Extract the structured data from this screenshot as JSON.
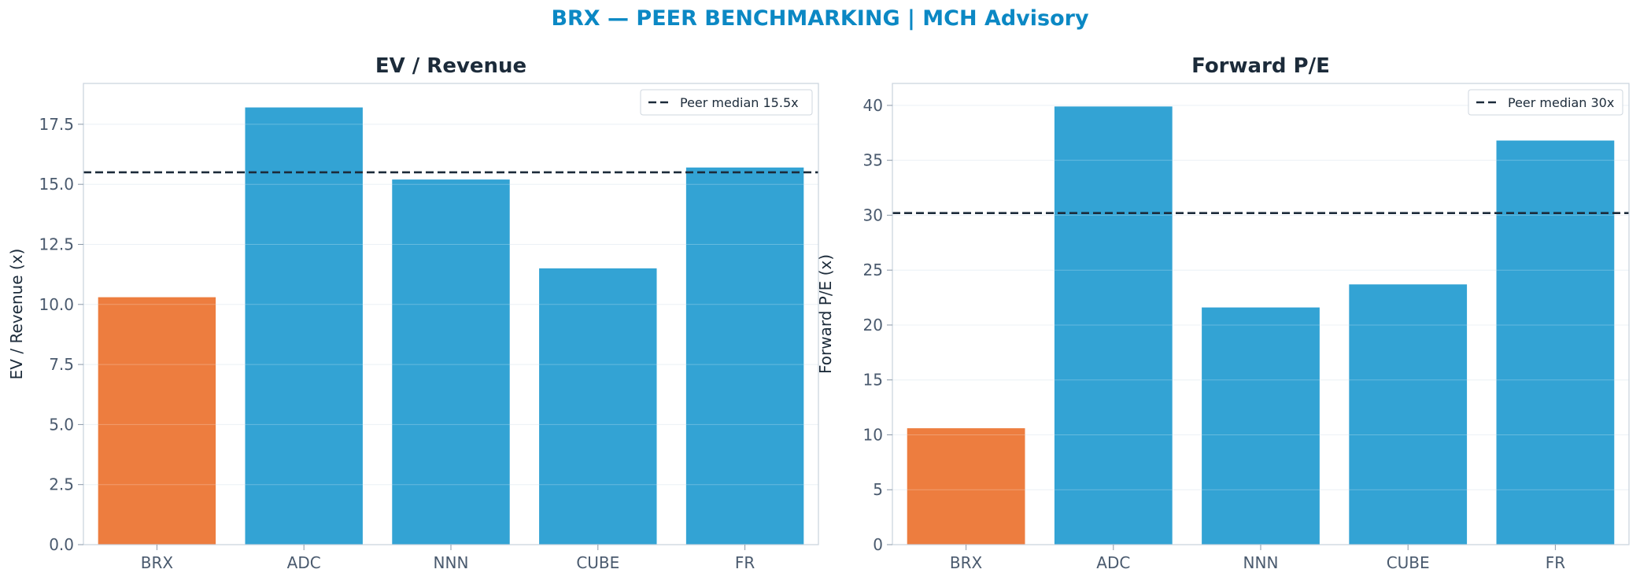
{
  "title": "BRX — PEER BENCHMARKING | MCH Advisory",
  "colors": {
    "highlight": "#ED7D3F",
    "peer": "#33A3D4",
    "median_line": "#1C2B3A",
    "title": "#0B88C4"
  },
  "chart_data": [
    {
      "type": "bar",
      "title": "EV / Revenue",
      "ylabel": "EV / Revenue (x)",
      "categories": [
        "BRX",
        "ADC",
        "NNN",
        "CUBE",
        "FR"
      ],
      "values": [
        10.3,
        18.2,
        15.2,
        11.5,
        15.7
      ],
      "highlight": "BRX",
      "ylim": [
        0,
        19.2
      ],
      "yticks": [
        0,
        2.5,
        5,
        7.5,
        10,
        12.5,
        15,
        17.5
      ],
      "ytick_labels": [
        "0.0",
        "2.5",
        "5.0",
        "7.5",
        "10.0",
        "12.5",
        "15.0",
        "17.5"
      ],
      "reference_line": {
        "value": 15.5,
        "label": "Peer median 15.5x"
      },
      "legend_position": "top-right",
      "grid": true
    },
    {
      "type": "bar",
      "title": "Forward P/E",
      "ylabel": "Forward P/E (x)",
      "categories": [
        "BRX",
        "ADC",
        "NNN",
        "CUBE",
        "FR"
      ],
      "values": [
        10.6,
        39.9,
        21.6,
        23.7,
        36.8
      ],
      "highlight": "BRX",
      "ylim": [
        0,
        42
      ],
      "yticks": [
        0,
        5,
        10,
        15,
        20,
        25,
        30,
        35,
        40
      ],
      "ytick_labels": [
        "0",
        "5",
        "10",
        "15",
        "20",
        "25",
        "30",
        "35",
        "40"
      ],
      "reference_line": {
        "value": 30.2,
        "label": "Peer median 30x"
      },
      "legend_position": "top-right",
      "grid": true
    }
  ]
}
